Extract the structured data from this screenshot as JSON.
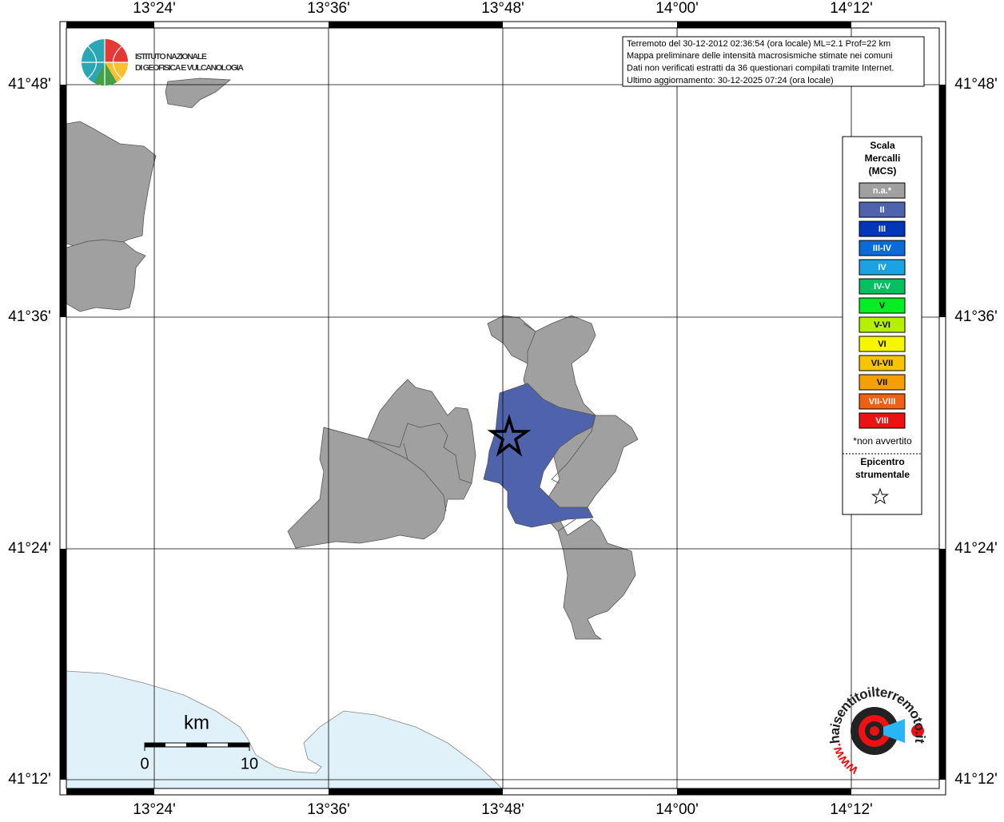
{
  "axes": {
    "lon_labels": [
      "13°24'",
      "13°36'",
      "13°48'",
      "14°00'",
      "14°12'"
    ],
    "lat_labels": [
      "41°48'",
      "41°36'",
      "41°24'",
      "41°12'"
    ]
  },
  "logo": {
    "line1": "ISTITUTO NAZIONALE",
    "line2": "DI GEOFISICA E VULCANOLOGIA"
  },
  "info": [
    "Terremoto del 30-12-2012 02:36:54 (ora locale) ML=2.1 Prof=22 km",
    "Mappa preliminare delle intensità macrosismiche stimate nei comuni",
    "Dati non verificati estratti da 36 questionari compilati tramite Internet.",
    "Ultimo aggiornamento: 30-12-2025 07:24 (ora locale)"
  ],
  "legend": {
    "title": [
      "Scala",
      "Mercalli",
      "(MCS)"
    ],
    "classes": [
      {
        "label": "n.a.*",
        "color": "#a0a0a0"
      },
      {
        "label": "II",
        "color": "#4f63ad"
      },
      {
        "label": "III",
        "color": "#0036b8"
      },
      {
        "label": "III-IV",
        "color": "#0a6ad6"
      },
      {
        "label": "IV",
        "color": "#1aa2e2"
      },
      {
        "label": "IV-V",
        "color": "#00c060"
      },
      {
        "label": "V",
        "color": "#00ee22"
      },
      {
        "label": "V-VI",
        "color": "#b4f000"
      },
      {
        "label": "VI",
        "color": "#f6f600"
      },
      {
        "label": "VI-VII",
        "color": "#f6c400"
      },
      {
        "label": "VII",
        "color": "#f6a000"
      },
      {
        "label": "VII-VIII",
        "color": "#f06010"
      },
      {
        "label": "VIII",
        "color": "#ee1111"
      }
    ],
    "note": "*non avvertito",
    "epicenter": [
      "Epicentro",
      "strumentale"
    ]
  },
  "scale_bar": {
    "unit": "km",
    "labels": [
      "0",
      "10"
    ]
  },
  "watermark": {
    "text": "haisentitoilterremoto.it",
    "prefix": "www."
  }
}
